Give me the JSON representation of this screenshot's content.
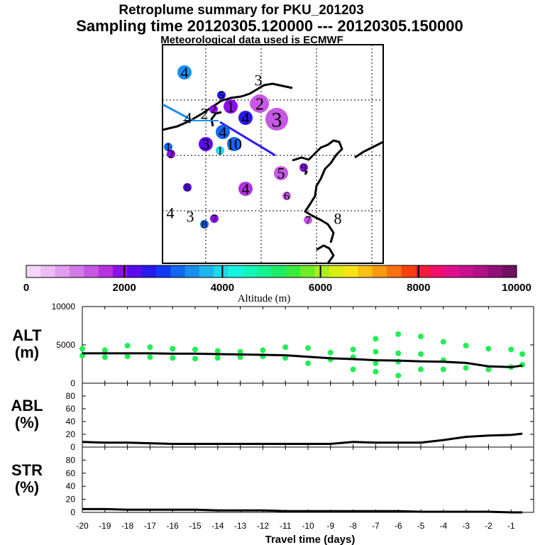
{
  "title": {
    "line1": "Retroplume summary for PKU_201203",
    "line2": "Sampling time   20120305.120000 --- 20120305.150000",
    "line3": "Meteorological data used is ECMWF"
  },
  "colorbar": {
    "colors": [
      "#f4d6f6",
      "#ecbcf2",
      "#e09ced",
      "#d47ae8",
      "#c658e3",
      "#b432e0",
      "#8a10e8",
      "#5a0ced",
      "#2a18f0",
      "#1038f5",
      "#1466f2",
      "#1a90ee",
      "#1cb6ec",
      "#1edae8",
      "#14f4e0",
      "#12f6bc",
      "#14f292",
      "#1cee6a",
      "#38ec3c",
      "#6eee24",
      "#a8ee1c",
      "#d8ee14",
      "#f8e414",
      "#f8c010",
      "#f89a10",
      "#f8720e",
      "#f8400e",
      "#f41a3c",
      "#f0106c",
      "#e0108c",
      "#c81090",
      "#b01088",
      "#901078",
      "#701060"
    ],
    "tick_labels": [
      "0",
      "2000",
      "4000",
      "6000",
      "8000",
      "10000"
    ],
    "label": "Altitude (m)"
  },
  "map_markers": [
    {
      "label": "4",
      "color": "#1a90ee",
      "size": "m"
    },
    {
      "label": "2",
      "color": "#8a10e8",
      "size": "s"
    },
    {
      "label": "2",
      "color": "#c658e3",
      "size": "m"
    },
    {
      "label": "5",
      "color": "#2a18f0",
      "size": "s"
    },
    {
      "label": "1",
      "color": "#8a10e8",
      "size": "m"
    },
    {
      "label": "2",
      "color": "#c658e3",
      "size": "l"
    },
    {
      "label": "4",
      "color": "#2a18f0",
      "size": "m"
    },
    {
      "label": "3",
      "color": "#c658e3",
      "size": "xl"
    },
    {
      "label": "4",
      "color": "#1466f2",
      "size": "m"
    },
    {
      "label": "3",
      "color": "#5a0ced",
      "size": "m"
    },
    {
      "label": "10",
      "color": "#1466f2",
      "size": "m"
    },
    {
      "label": "1",
      "color": "#1edae8",
      "size": "s"
    },
    {
      "label": "1",
      "color": "#1466f2",
      "size": "s"
    },
    {
      "label": "2",
      "color": "#8a10e8",
      "size": "s"
    },
    {
      "label": "5",
      "color": "#c658e3",
      "size": "m"
    },
    {
      "label": "9",
      "color": "#8a10e8",
      "size": "s"
    },
    {
      "label": "6",
      "color": "#5a0ced",
      "size": "s"
    },
    {
      "label": "4",
      "color": "#b432e0",
      "size": "m"
    },
    {
      "label": "6",
      "color": "#c658e3",
      "size": "s"
    },
    {
      "label": "4",
      "color": "#000000",
      "size": "none"
    },
    {
      "label": "3",
      "color": "#000000",
      "size": "none"
    },
    {
      "label": "8",
      "color": "#1466f2",
      "size": "s"
    },
    {
      "label": "7",
      "color": "#8a10e8",
      "size": "s"
    },
    {
      "label": "7",
      "color": "#c658e3",
      "size": "s"
    },
    {
      "label": "8",
      "color": "#000000",
      "size": "none"
    },
    {
      "label": "4",
      "color": "#000000",
      "size": "none"
    },
    {
      "label": "2",
      "color": "#000000",
      "size": "none"
    },
    {
      "label": "3",
      "color": "#000000",
      "size": "none"
    }
  ],
  "chart_data": [
    {
      "type": "line",
      "panel": "ALT",
      "ylabel": "ALT\n(m)",
      "ylabel_lines": [
        "ALT",
        "(m)"
      ],
      "ylim": [
        0,
        10000
      ],
      "yticks": [
        "0",
        "5000",
        "10000"
      ],
      "x": [
        -20,
        -19,
        -18,
        -17,
        -16,
        -15,
        -14,
        -13,
        -12,
        -11,
        -10,
        -9,
        -8,
        -7,
        -6,
        -5,
        -4,
        -3,
        -2,
        -1,
        -0.5
      ],
      "y": [
        3900,
        3900,
        3900,
        3900,
        3850,
        3850,
        3800,
        3750,
        3700,
        3650,
        3450,
        3250,
        3150,
        3000,
        2950,
        2850,
        2800,
        2650,
        2200,
        2100,
        2300
      ],
      "scatter_color": "#22ee55",
      "scatter": [
        [
          -20,
          4500
        ],
        [
          -20,
          3600
        ],
        [
          -19,
          4300
        ],
        [
          -19,
          3400
        ],
        [
          -18,
          4900
        ],
        [
          -18,
          3500
        ],
        [
          -17,
          4700
        ],
        [
          -17,
          3400
        ],
        [
          -16,
          4500
        ],
        [
          -16,
          3300
        ],
        [
          -15,
          4400
        ],
        [
          -15,
          3200
        ],
        [
          -14,
          4200
        ],
        [
          -14,
          3300
        ],
        [
          -13,
          4100
        ],
        [
          -13,
          3400
        ],
        [
          -12,
          4300
        ],
        [
          -12,
          3500
        ],
        [
          -11,
          4700
        ],
        [
          -11,
          3300
        ],
        [
          -10,
          4600
        ],
        [
          -10,
          2600
        ],
        [
          -9,
          4000
        ],
        [
          -9,
          3100
        ],
        [
          -8,
          4400
        ],
        [
          -8,
          3400
        ],
        [
          -8,
          1800
        ],
        [
          -7,
          5800
        ],
        [
          -7,
          4100
        ],
        [
          -7,
          2600
        ],
        [
          -7,
          1500
        ],
        [
          -6,
          6400
        ],
        [
          -6,
          3900
        ],
        [
          -6,
          2800
        ],
        [
          -6,
          1000
        ],
        [
          -5,
          6100
        ],
        [
          -5,
          3800
        ],
        [
          -5,
          1800
        ],
        [
          -4,
          5400
        ],
        [
          -4,
          3000
        ],
        [
          -4,
          1800
        ],
        [
          -3,
          4900
        ],
        [
          -3,
          2000
        ],
        [
          -2,
          4500
        ],
        [
          -2,
          1800
        ],
        [
          -1,
          4400
        ],
        [
          -1,
          2100
        ],
        [
          -0.5,
          3800
        ],
        [
          -0.5,
          2400
        ]
      ]
    },
    {
      "type": "line",
      "panel": "ABL",
      "ylabel": "ABL\n(%)",
      "ylabel_lines": [
        "ABL",
        "(%)"
      ],
      "ylim": [
        0,
        100
      ],
      "yticks": [
        "0",
        "20",
        "40",
        "60",
        "80"
      ],
      "x": [
        -20,
        -19,
        -18,
        -17,
        -16,
        -15,
        -14,
        -13,
        -12,
        -11,
        -10,
        -9,
        -8,
        -7,
        -6,
        -5,
        -4,
        -3,
        -2,
        -1,
        -0.5
      ],
      "y": [
        8,
        7,
        7,
        6,
        5,
        5,
        5,
        5,
        5,
        5,
        5,
        5,
        8,
        7,
        7,
        7,
        11,
        16,
        18,
        19,
        21
      ]
    },
    {
      "type": "line",
      "panel": "STR",
      "ylabel": "STR\n(%)",
      "ylabel_lines": [
        "STR",
        "(%)"
      ],
      "ylim": [
        0,
        100
      ],
      "yticks": [
        "0",
        "20",
        "40",
        "60",
        "80"
      ],
      "x": [
        -20,
        -19,
        -18,
        -17,
        -16,
        -15,
        -14,
        -13,
        -12,
        -11,
        -10,
        -9,
        -8,
        -7,
        -6,
        -5,
        -4,
        -3,
        -2,
        -1,
        -0.5
      ],
      "y": [
        5,
        5,
        4,
        4,
        4,
        4,
        3,
        3,
        3,
        2,
        2,
        2,
        2,
        2,
        2,
        1,
        1,
        1,
        1,
        0,
        0
      ]
    }
  ],
  "xaxis": {
    "ticks": [
      -20,
      -19,
      -18,
      -17,
      -16,
      -15,
      -14,
      -13,
      -12,
      -11,
      -10,
      -9,
      -8,
      -7,
      -6,
      -5,
      -4,
      -3,
      -2,
      -1
    ],
    "tick_labels": [
      "-20",
      "-19",
      "-18",
      "-17",
      "-16",
      "-15",
      "-14",
      "-13",
      "-12",
      "-11",
      "-10",
      "-9",
      "-8",
      "-7",
      "-6",
      "-5",
      "-4",
      "-3",
      "-2",
      "-1"
    ],
    "label": "Travel time (days)",
    "range": [
      -20,
      0
    ]
  }
}
